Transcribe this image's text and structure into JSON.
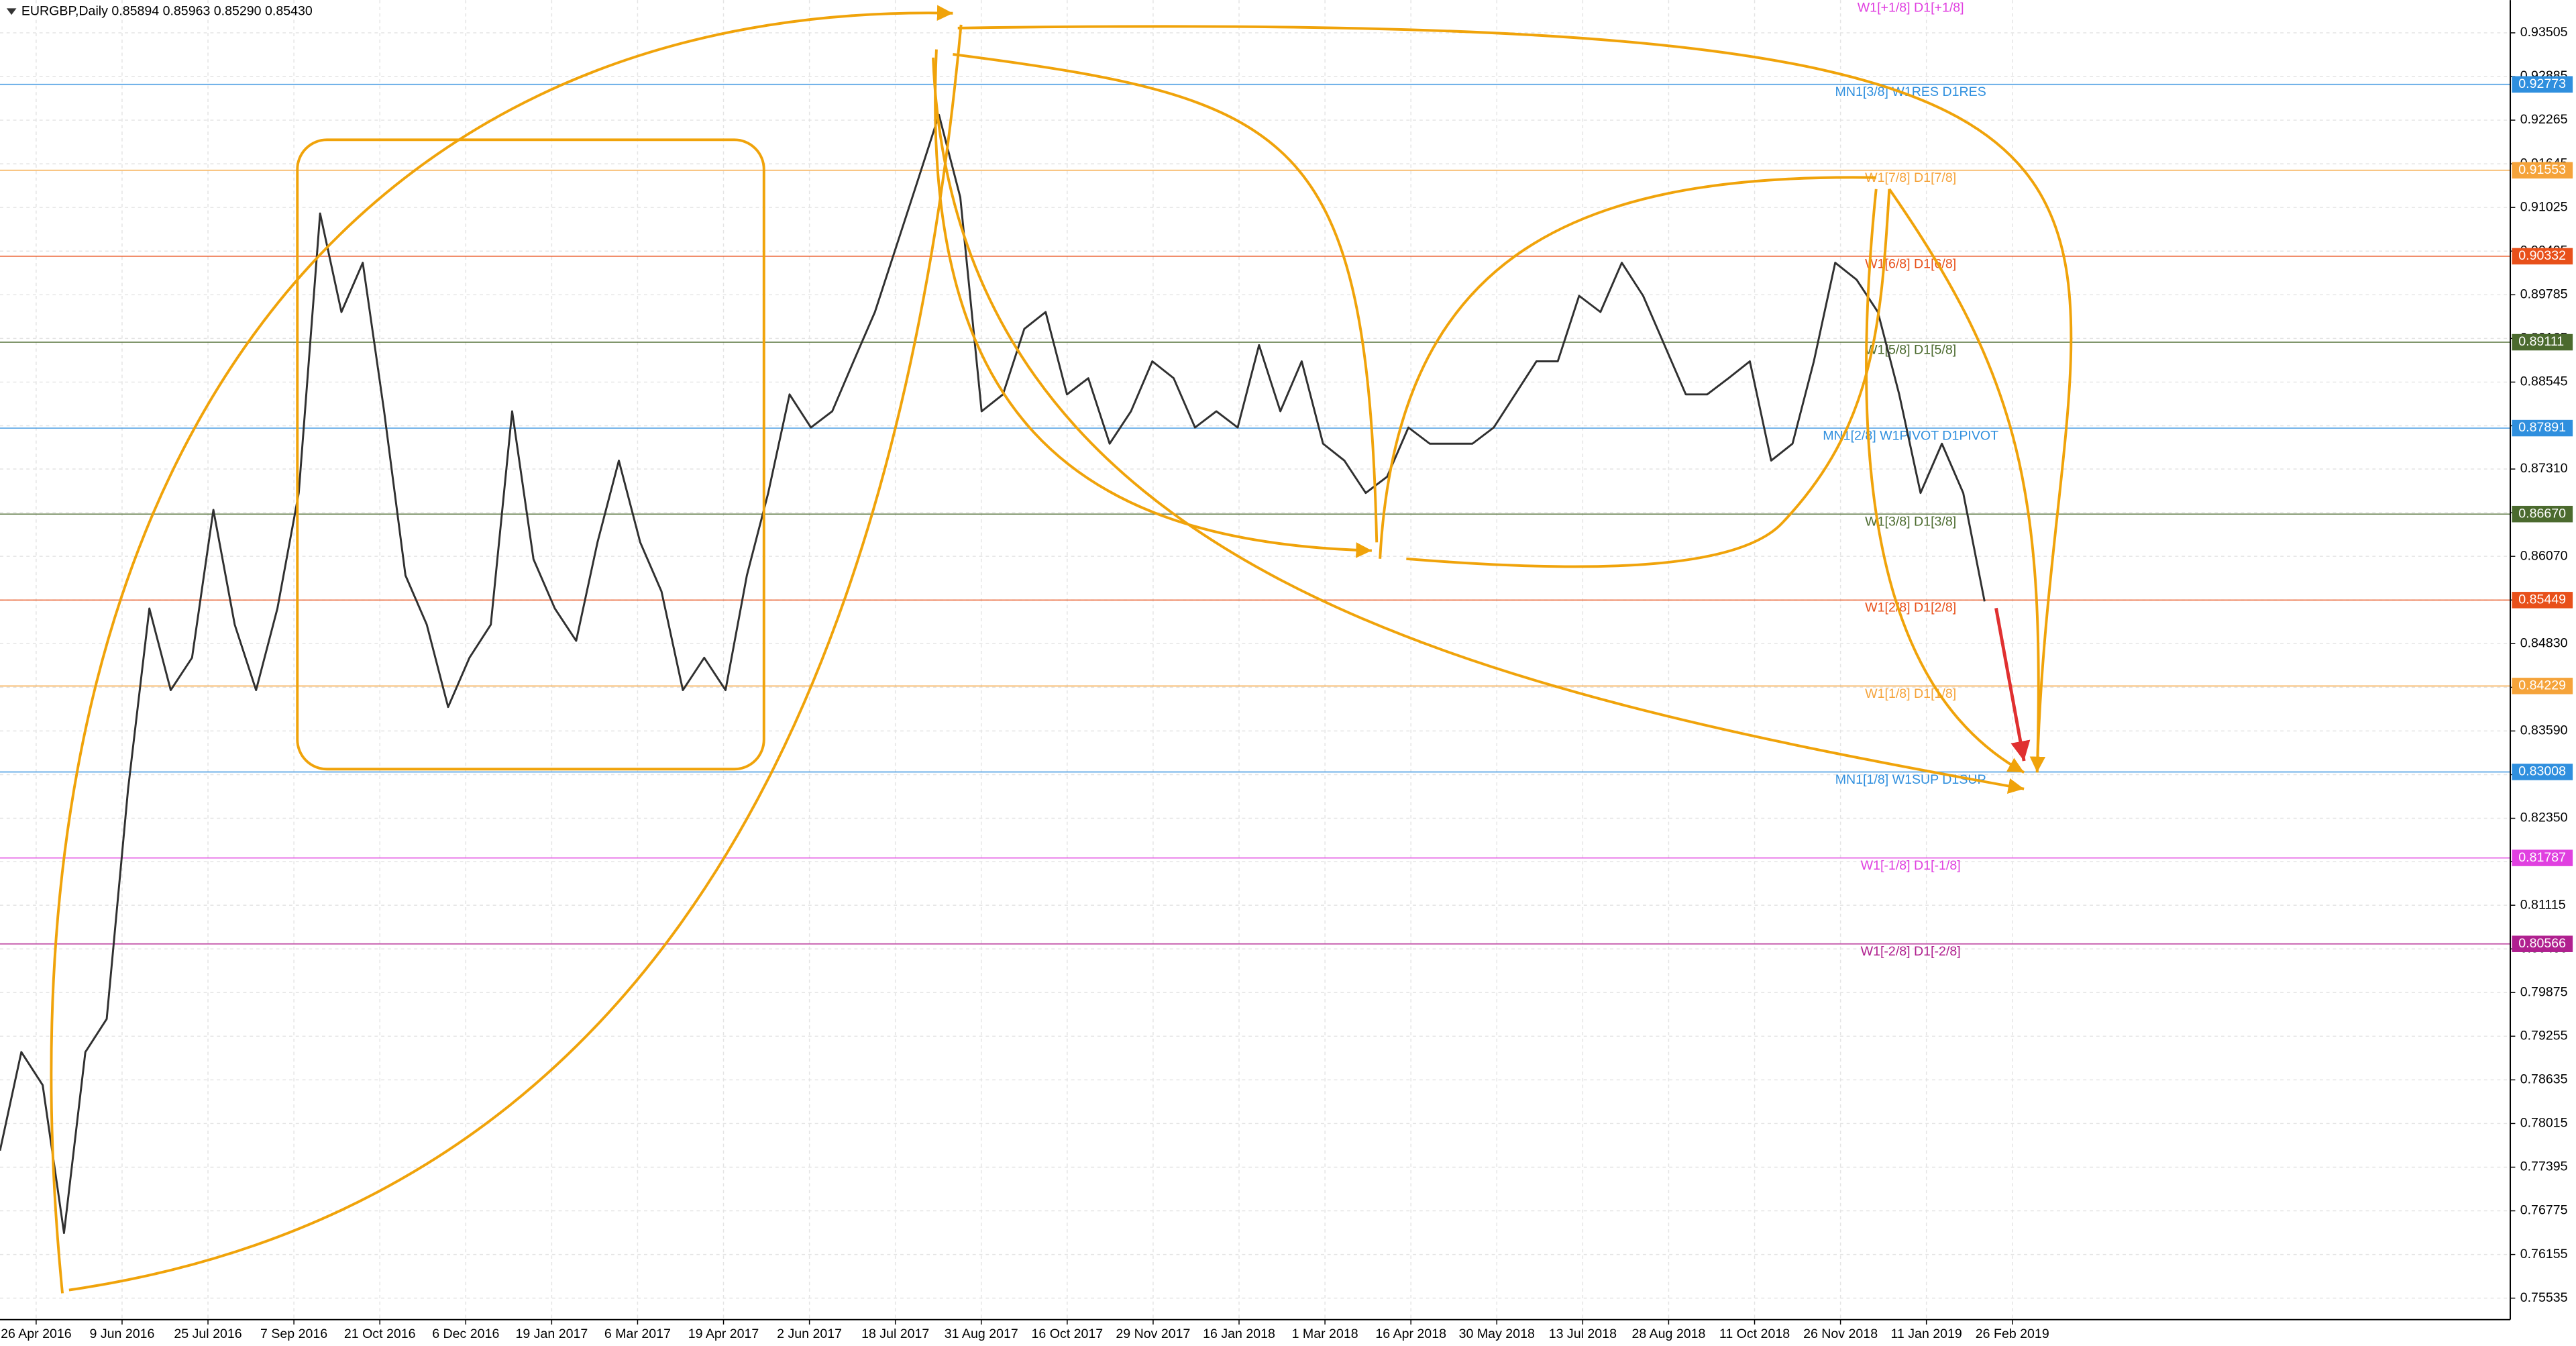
{
  "chart_data": {
    "type": "line",
    "title": "EURGBP,Daily  0.85894 0.85963 0.85290 0.85430",
    "xtick_labels": [
      "26 Apr 2016",
      "9 Jun 2016",
      "25 Jul 2016",
      "7 Sep 2016",
      "21 Oct 2016",
      "6 Dec 2016",
      "19 Jan 2017",
      "6 Mar 2017",
      "19 Apr 2017",
      "2 Jun 2017",
      "18 Jul 2017",
      "31 Aug 2017",
      "16 Oct 2017",
      "29 Nov 2017",
      "16 Jan 2018",
      "1 Mar 2018",
      "16 Apr 2018",
      "30 May 2018",
      "13 Jul 2018",
      "28 Aug 2018",
      "11 Oct 2018",
      "26 Nov 2018",
      "11 Jan 2019",
      "26 Feb 2019"
    ],
    "series": [
      {
        "name": "EURGBP",
        "color": "#303030",
        "values": [
          0.7763,
          0.7903,
          0.7856,
          0.7646,
          0.7903,
          0.795,
          0.8276,
          0.8533,
          0.8417,
          0.8463,
          0.8673,
          0.851,
          0.8417,
          0.8533,
          0.8697,
          0.9094,
          0.8954,
          0.9024,
          0.8813,
          0.858,
          0.851,
          0.8393,
          0.8463,
          0.851,
          0.8813,
          0.8603,
          0.8533,
          0.8487,
          0.8627,
          0.8743,
          0.8627,
          0.8557,
          0.8417,
          0.8463,
          0.8417,
          0.858,
          0.8697,
          0.8837,
          0.879,
          0.8813,
          0.8884,
          0.8954,
          0.9047,
          0.914,
          0.9234,
          0.9117,
          0.8813,
          0.8837,
          0.893,
          0.8954,
          0.8837,
          0.886,
          0.8767,
          0.8813,
          0.8884,
          0.886,
          0.879,
          0.8813,
          0.879,
          0.8907,
          0.8813,
          0.8884,
          0.8767,
          0.8743,
          0.8697,
          0.872,
          0.879,
          0.8767,
          0.8767,
          0.8767,
          0.879,
          0.8837,
          0.8884,
          0.8884,
          0.8977,
          0.8954,
          0.9024,
          0.8977,
          0.8907,
          0.8837,
          0.8837,
          0.886,
          0.8884,
          0.8743,
          0.8767,
          0.8884,
          0.9024,
          0.9,
          0.8954,
          0.8837,
          0.8697,
          0.8767,
          0.8697,
          0.8543
        ]
      }
    ],
    "ylim": [
      0.7523,
      0.9397
    ],
    "yticks": [
      0.93505,
      0.92885,
      0.92265,
      0.91645,
      0.91025,
      0.90405,
      0.89785,
      0.89165,
      0.88545,
      0.87925,
      {
        "value": 0.8731,
        "label": "0.87310"
      },
      {
        "value": 0.8669,
        "label": "0.86690"
      },
      {
        "value": 0.8607,
        "label": "0.86070"
      },
      {
        "value": 0.8545,
        "label": "0.85450"
      },
      {
        "value": 0.8483,
        "label": "0.84830"
      },
      {
        "value": 0.8421,
        "label": "0.84210"
      },
      {
        "value": 0.8359,
        "label": "0.83590"
      },
      {
        "value": 0.8297,
        "label": "0.82970"
      },
      {
        "value": 0.8235,
        "label": "0.82350"
      },
      0.81735,
      0.81115,
      0.80495,
      0.79875,
      0.79255,
      0.78635,
      0.78015,
      0.77395,
      0.76775,
      0.76155,
      0.75535
    ],
    "grid": true,
    "annotations": [
      "W1[+1/8] D1[+1/8]"
    ],
    "levels": [
      {
        "name": "MN1[3/8] W1RES D1RES",
        "value": 0.92773,
        "color": "#2f8fde"
      },
      {
        "name": "W1[7/8] D1[7/8]",
        "value": 0.91553,
        "color": "#f5a33a"
      },
      {
        "name": "W1[6/8] D1[6/8]",
        "value": 0.90332,
        "color": "#e8501a"
      },
      {
        "name": "W1[5/8] D1[5/8]",
        "value": 0.89111,
        "color": "#4b6a2e"
      },
      {
        "name": "MN1[2/8] W1PIVOT D1PIVOT",
        "value": 0.87891,
        "color": "#2f8fde"
      },
      {
        "name": "W1[3/8] D1[3/8]",
        "value": 0.8667,
        "value_label": "0.86670",
        "color": "#4b6a2e"
      },
      {
        "name": "W1[2/8] D1[2/8]",
        "value": 0.85449,
        "color": "#e8501a"
      },
      {
        "name": "W1[1/8] D1[1/8]",
        "value": 0.84229,
        "color": "#f5a33a"
      },
      {
        "name": "MN1[1/8] W1SUP D1SUP",
        "value": 0.83008,
        "color": "#2f8fde"
      },
      {
        "name": "W1[-1/8] D1[-1/8]",
        "value": 0.81787,
        "color": "#e040e0"
      },
      {
        "name": "W1[-2/8] D1[-2/8]",
        "value": 0.80566,
        "color": "#b0208f"
      }
    ]
  }
}
